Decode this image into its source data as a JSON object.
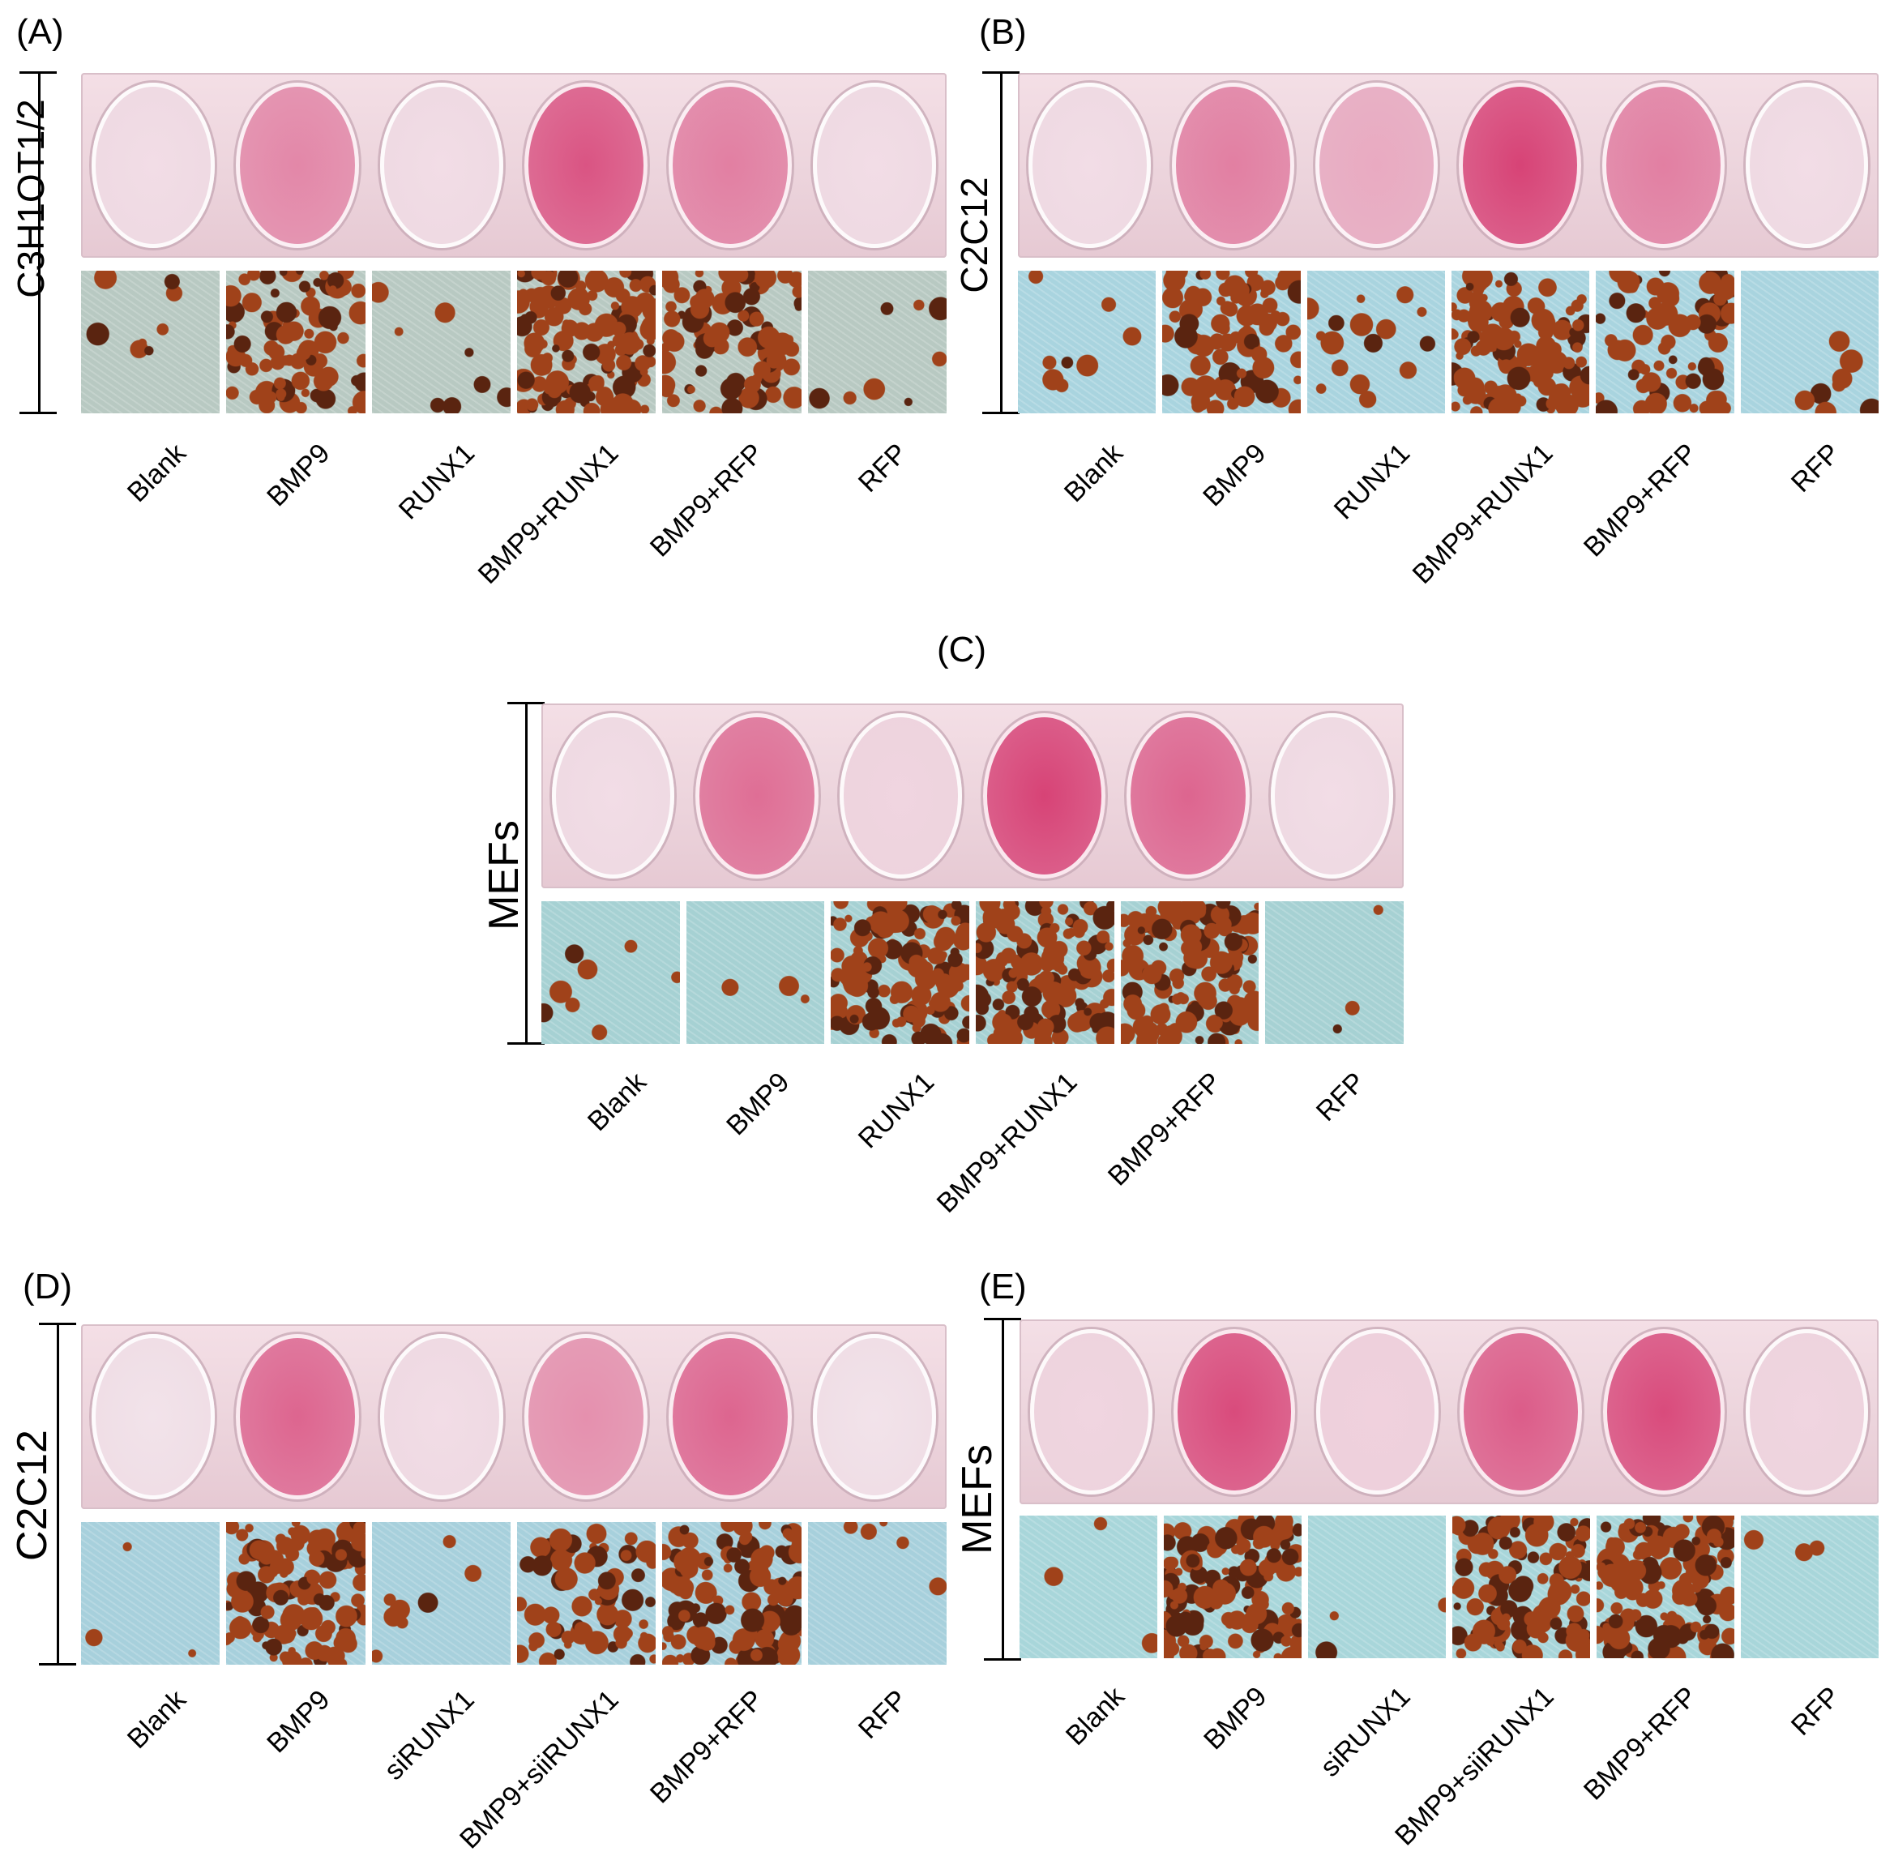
{
  "panels": [
    {
      "id": "A",
      "label": "(A)",
      "cell_line": "C3H1OT1/2",
      "conditions": [
        "Blank",
        "BMP9",
        "RUNX1",
        "BMP9+RUNX1",
        "BMP9+RFP",
        "RFP"
      ],
      "well_stain": [
        0.05,
        0.55,
        0.05,
        0.85,
        0.6,
        0.05
      ],
      "micro_stain": [
        0.05,
        0.55,
        0.05,
        0.8,
        0.5,
        0.05
      ],
      "micro_bg": "#b8c9c2"
    },
    {
      "id": "B",
      "label": "(B)",
      "cell_line": "C2C12",
      "conditions": [
        "Blank",
        "BMP9",
        "RUNX1",
        "BMP9+RUNX1",
        "BMP9+RFP",
        "RFP"
      ],
      "well_stain": [
        0.05,
        0.6,
        0.35,
        0.95,
        0.6,
        0.05
      ],
      "micro_stain": [
        0.05,
        0.55,
        0.1,
        0.75,
        0.45,
        0.05
      ],
      "micro_bg": "#a9d4df"
    },
    {
      "id": "C",
      "label": "(C)",
      "cell_line": "MEFs",
      "conditions": [
        "Blank",
        "BMP9",
        "RUNX1",
        "BMP9+RUNX1",
        "BMP9+RFP",
        "RFP"
      ],
      "well_stain": [
        0.05,
        0.7,
        0.1,
        0.95,
        0.75,
        0.05
      ],
      "micro_stain": [
        0.05,
        0.02,
        0.8,
        0.85,
        0.8,
        0.02
      ],
      "micro_bg": "#a6d1d3"
    },
    {
      "id": "D",
      "label": "(D)",
      "cell_line": "C2C12",
      "conditions": [
        "Blank",
        "BMP9",
        "siRUNX1",
        "BMP9+siiRUNX1",
        "BMP9+RFP",
        "RFP"
      ],
      "well_stain": [
        0.02,
        0.75,
        0.05,
        0.5,
        0.75,
        0.02
      ],
      "micro_stain": [
        0.02,
        0.75,
        0.05,
        0.4,
        0.7,
        0.03
      ],
      "micro_bg": "#a7d0dc"
    },
    {
      "id": "E",
      "label": "(E)",
      "cell_line": "MEFs",
      "conditions": [
        "Blank",
        "BMP9",
        "siRUNX1",
        "BMP9+siiRUNX1",
        "BMP9+RFP",
        "RFP"
      ],
      "well_stain": [
        0.1,
        0.9,
        0.12,
        0.8,
        0.9,
        0.1
      ],
      "micro_stain": [
        0.02,
        0.85,
        0.02,
        0.7,
        0.85,
        0.02
      ],
      "micro_bg": "#a8d6da"
    }
  ],
  "colors": {
    "stain": "#d63a70",
    "mineral": "#a0421a",
    "plate": "#ecd4dc"
  }
}
